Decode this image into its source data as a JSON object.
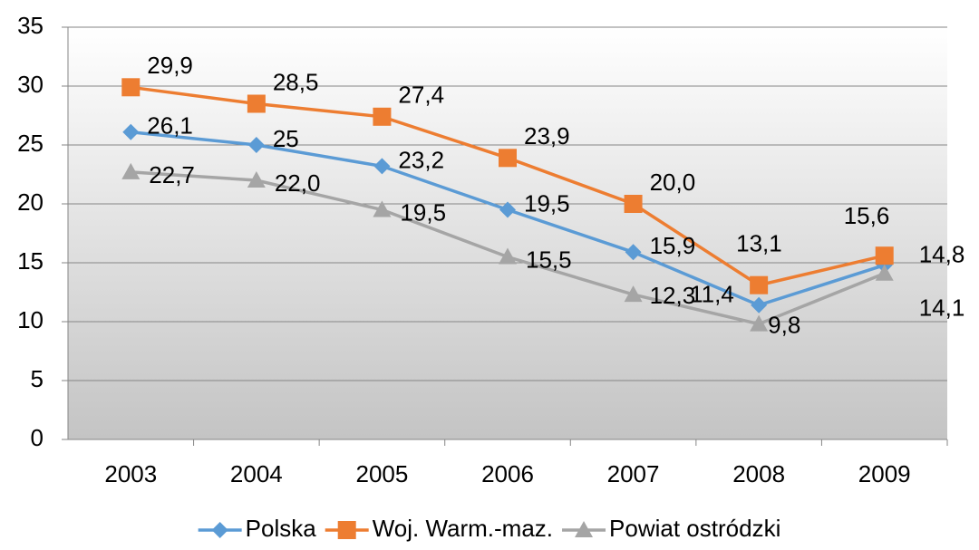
{
  "chart_data": {
    "type": "line",
    "categories": [
      "2003",
      "2004",
      "2005",
      "2006",
      "2007",
      "2008",
      "2009"
    ],
    "series": [
      {
        "name": "Polska",
        "color": "#5b9bd5",
        "marker": "diamond",
        "values": [
          26.1,
          25,
          23.2,
          19.5,
          15.9,
          11.4,
          14.8
        ],
        "value_labels": [
          "26,1",
          "25",
          "23,2",
          "19,5",
          "15,9",
          "11,4",
          "14,8"
        ]
      },
      {
        "name": "Woj. Warm.-maz.",
        "color": "#ed7d31",
        "marker": "square",
        "values": [
          29.9,
          28.5,
          27.4,
          23.9,
          20.0,
          13.1,
          15.6
        ],
        "value_labels": [
          "29,9",
          "28,5",
          "27,4",
          "23,9",
          "20,0",
          "13,1",
          "15,6"
        ]
      },
      {
        "name": "Powiat ostródzki",
        "color": "#a5a5a5",
        "marker": "triangle",
        "values": [
          22.7,
          22.0,
          19.5,
          15.5,
          12.3,
          9.8,
          14.1
        ],
        "value_labels": [
          "22,7",
          "22,0",
          "19,5",
          "15,5",
          "12,3",
          "9,8",
          "14,1"
        ]
      }
    ],
    "ylim": [
      0,
      35
    ],
    "yticks": [
      0,
      5,
      10,
      15,
      20,
      25,
      30,
      35
    ],
    "grid": true,
    "legend": "bottom"
  }
}
